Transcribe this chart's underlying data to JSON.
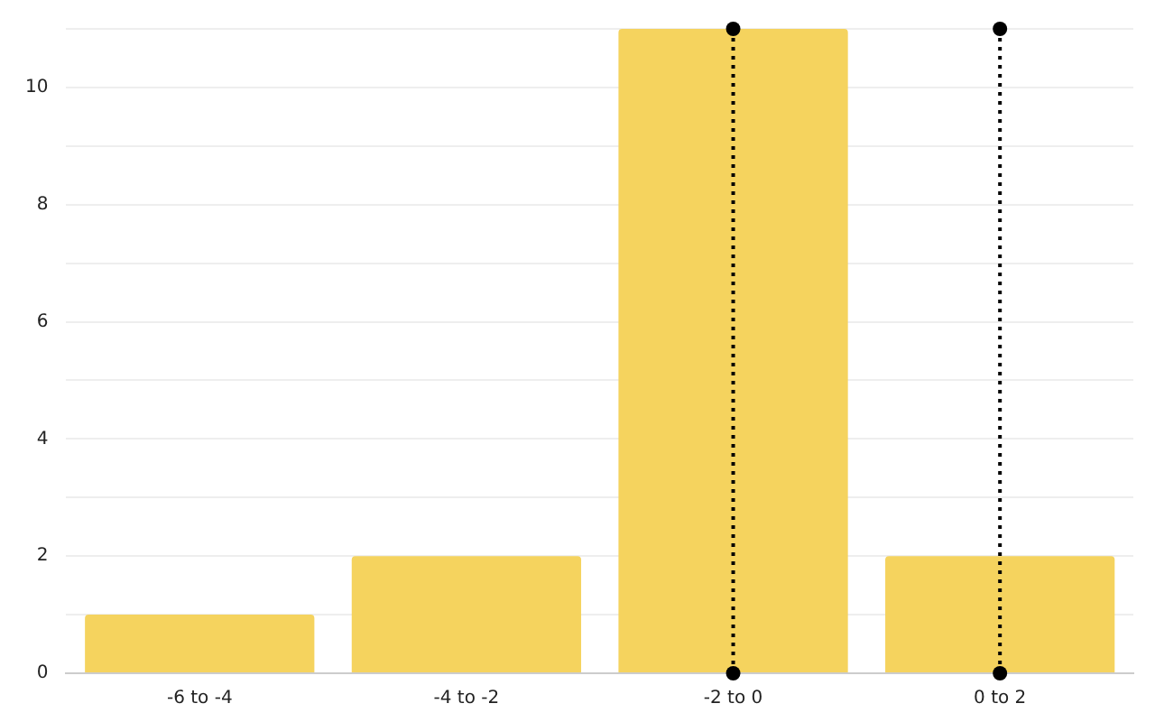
{
  "chart_data": {
    "type": "bar",
    "categories": [
      "-6 to -4",
      "-4 to -2",
      "-2 to 0",
      "0 to 2"
    ],
    "series": [
      {
        "color": "#f5d35e",
        "values": [
          1,
          2,
          11,
          2
        ]
      },
      {
        "type": "scatter",
        "x": [
          "-2 to 0",
          "-2 to 0",
          "0 to 2",
          "0 to 2"
        ],
        "values": [
          0,
          11,
          0,
          11
        ],
        "color": "#000000",
        "marker": "circle"
      }
    ],
    "ylim": [
      0,
      11
    ],
    "yticks": [
      0,
      {
        "value": 1,
        "label": null
      },
      2,
      {
        "value": 3,
        "label": null
      },
      4,
      {
        "value": 5,
        "label": null
      },
      6,
      {
        "value": 7,
        "label": null
      },
      8,
      {
        "value": 9,
        "label": null
      },
      10,
      {
        "value": 11,
        "label": null
      }
    ],
    "grid": "y",
    "ref_lines": [
      {
        "axis": "x",
        "value": "-2 to 0",
        "color": "#000000",
        "line_style": "dotted"
      },
      {
        "axis": "x",
        "value": "0 to 2",
        "color": "#000000",
        "line_style": "dotted"
      }
    ]
  }
}
